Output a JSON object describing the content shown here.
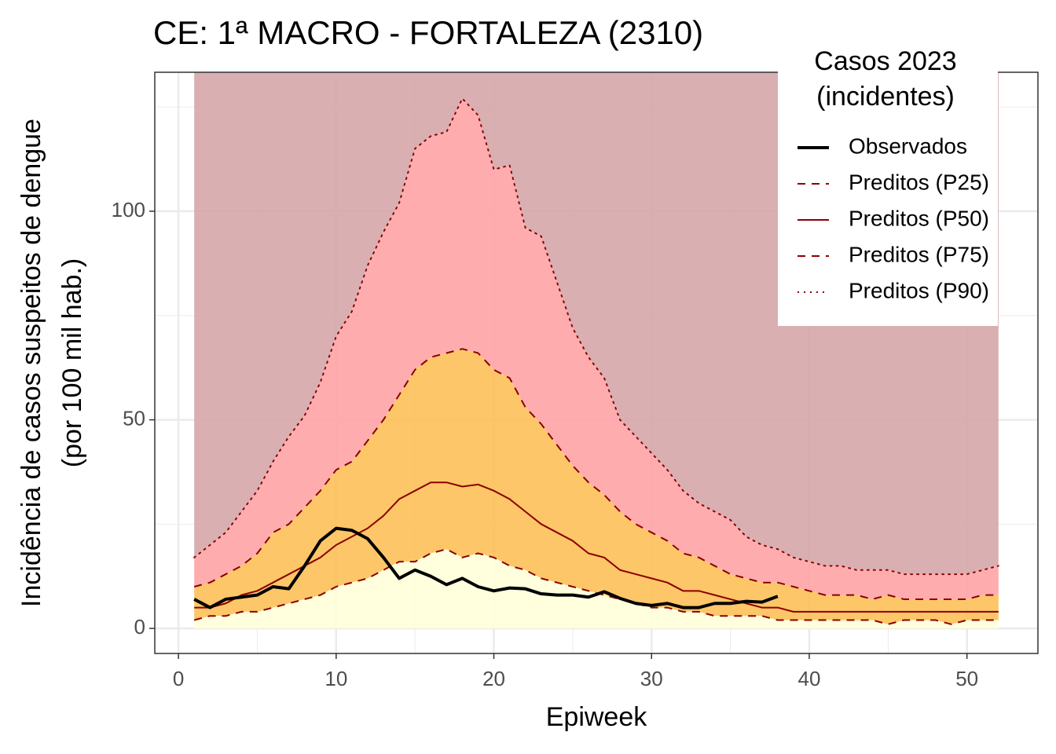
{
  "chart_data": {
    "type": "line",
    "title": "CE: 1ª MACRO - FORTALEZA (2310)",
    "x_label": "Epiweek",
    "y_label": [
      "Incidência de casos suspeitos de dengue",
      "(por 100 mil hab.)"
    ],
    "legend_title": [
      "Casos 2023",
      " (incidentes)"
    ],
    "legend_position": "top-right",
    "grid": true,
    "xlim": [
      -1.5,
      54.5
    ],
    "ylim": [
      -6,
      133.3
    ],
    "xticks": [
      0,
      10,
      20,
      30,
      40,
      50
    ],
    "yticks": [
      0,
      50,
      100
    ],
    "x_minor_ticks": [
      5,
      15,
      25,
      35,
      45
    ],
    "y_minor_ticks": [
      25,
      75,
      125
    ],
    "upper_fill": "#d5a6a8",
    "x": [
      1,
      2,
      3,
      4,
      5,
      6,
      7,
      8,
      9,
      10,
      11,
      12,
      13,
      14,
      15,
      16,
      17,
      18,
      19,
      20,
      21,
      22,
      23,
      24,
      25,
      26,
      27,
      28,
      29,
      30,
      31,
      32,
      33,
      34,
      35,
      36,
      37,
      38,
      39,
      40,
      41,
      42,
      43,
      44,
      45,
      46,
      47,
      48,
      49,
      50,
      51,
      52
    ],
    "series": [
      {
        "name": "Observados",
        "color": "#000000",
        "dash": "solid",
        "width": 4,
        "values": [
          7,
          5,
          7,
          7.5,
          8,
          10,
          9.5,
          15,
          21,
          24,
          23.5,
          21.5,
          17,
          12,
          14,
          12.5,
          10.5,
          12,
          10,
          9,
          9.7,
          9.5,
          8.3,
          8,
          8,
          7.5,
          8.8,
          7.2,
          6,
          5.5,
          6,
          5,
          5,
          6,
          6,
          6.5,
          6.3,
          7.7,
          null,
          null,
          null,
          null,
          null,
          null,
          null,
          null,
          null,
          null,
          null,
          null,
          null,
          null
        ]
      },
      {
        "name": "Preditos (P25)",
        "color": "#8b0000",
        "dash": "dashed",
        "width": 2,
        "fill": "#ffffd9",
        "values": [
          2,
          3,
          3,
          4,
          4,
          5,
          6,
          7,
          8,
          10,
          11,
          12,
          14,
          16,
          16,
          18,
          19,
          17,
          18,
          17,
          15,
          14,
          12,
          11,
          10,
          9,
          8,
          7,
          6,
          5,
          5,
          4,
          4,
          3,
          3,
          3,
          3,
          2,
          2,
          2,
          2,
          2,
          2,
          2,
          1,
          2,
          2,
          2,
          1,
          2,
          2,
          2
        ]
      },
      {
        "name": "Preditos (P50)",
        "color": "#8b0000",
        "dash": "solid",
        "width": 2,
        "values": [
          5,
          5,
          6,
          8,
          9,
          11,
          13,
          15,
          17,
          20,
          22,
          24,
          27,
          31,
          33,
          35,
          35,
          34,
          34.5,
          33,
          31,
          28,
          25,
          23,
          21,
          18,
          17,
          14,
          13,
          12,
          11,
          9,
          9,
          8,
          7,
          6,
          5,
          5,
          4,
          4,
          4,
          4,
          4,
          4,
          4,
          4,
          4,
          4,
          4,
          4,
          4,
          4
        ]
      },
      {
        "name": "Preditos (P75)",
        "color": "#8b0000",
        "dash": "dashed",
        "width": 2,
        "fill": "#fdc058",
        "values": [
          10,
          11,
          13,
          15,
          18,
          23,
          25,
          29,
          33,
          38,
          40,
          45,
          50,
          56,
          62,
          65,
          66,
          67,
          66,
          62,
          60,
          53,
          49,
          44,
          39,
          35,
          32,
          28,
          25,
          23,
          21,
          18,
          17,
          15,
          13,
          12,
          11,
          11,
          10,
          9,
          8,
          8,
          8,
          7,
          8,
          7,
          7,
          7,
          7,
          7,
          8,
          8
        ]
      },
      {
        "name": "Preditos (P90)",
        "color": "#8b0000",
        "dash": "dotted",
        "width": 2,
        "fill": "#ffa3a6",
        "values": [
          17,
          20,
          23,
          28,
          33,
          40,
          46,
          51,
          59,
          70,
          76,
          87,
          95,
          102,
          115,
          118,
          119,
          127,
          123,
          110,
          111,
          96,
          94,
          83,
          72,
          65,
          60,
          50,
          46,
          42,
          38,
          33,
          30,
          28,
          26,
          22,
          20,
          19,
          17,
          16,
          15,
          15,
          14,
          14,
          14,
          13,
          13,
          13,
          13,
          13,
          14,
          15
        ]
      }
    ]
  }
}
